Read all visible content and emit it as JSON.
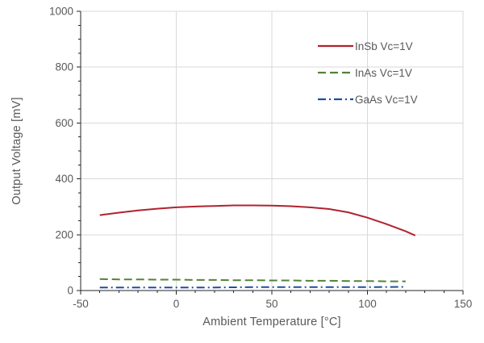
{
  "chart_data": {
    "type": "line",
    "title": "",
    "xlabel": "Ambient Temperature [°C]",
    "ylabel": "Output Voltage [mV]",
    "xlim": [
      -50,
      150
    ],
    "ylim": [
      0,
      1000
    ],
    "x_major_ticks": [
      -50,
      0,
      50,
      100,
      150
    ],
    "x_minor_step": 10,
    "y_major_ticks": [
      0,
      200,
      400,
      600,
      800,
      1000
    ],
    "y_minor_step": 50,
    "grid": "major-gridlines-on",
    "legend_position": "inside-top-right",
    "series": [
      {
        "name": "InSb Vc=1V",
        "color": "#af2330",
        "style": "solid",
        "points": [
          [
            -40,
            270
          ],
          [
            -30,
            279
          ],
          [
            -20,
            287
          ],
          [
            -10,
            293
          ],
          [
            0,
            298
          ],
          [
            10,
            301
          ],
          [
            20,
            303
          ],
          [
            30,
            305
          ],
          [
            40,
            305
          ],
          [
            50,
            304
          ],
          [
            60,
            302
          ],
          [
            70,
            298
          ],
          [
            80,
            292
          ],
          [
            90,
            280
          ],
          [
            100,
            261
          ],
          [
            110,
            238
          ],
          [
            120,
            212
          ],
          [
            125,
            197
          ]
        ]
      },
      {
        "name": "InAs Vc=1V",
        "color": "#558237",
        "style": "dashed",
        "points": [
          [
            -40,
            41
          ],
          [
            -30,
            40
          ],
          [
            -20,
            40
          ],
          [
            -10,
            39
          ],
          [
            0,
            39
          ],
          [
            10,
            38
          ],
          [
            20,
            38
          ],
          [
            30,
            37
          ],
          [
            40,
            37
          ],
          [
            50,
            36
          ],
          [
            60,
            36
          ],
          [
            70,
            35
          ],
          [
            80,
            35
          ],
          [
            90,
            34
          ],
          [
            100,
            34
          ],
          [
            110,
            33
          ],
          [
            120,
            33
          ]
        ]
      },
      {
        "name": "GaAs Vc=1V",
        "color": "#1e4e9e",
        "style": "dash-dot",
        "points": [
          [
            -40,
            11
          ],
          [
            -20,
            11
          ],
          [
            0,
            11
          ],
          [
            20,
            11
          ],
          [
            40,
            12
          ],
          [
            60,
            12
          ],
          [
            80,
            12
          ],
          [
            100,
            12
          ],
          [
            120,
            13
          ]
        ]
      }
    ]
  },
  "colors": {
    "grid": "#d9d9d9",
    "axis": "#262626",
    "text": "#595959",
    "background": "#ffffff"
  }
}
